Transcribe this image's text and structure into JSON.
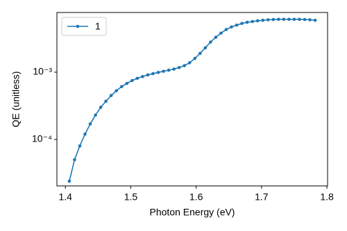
{
  "chart_data": {
    "type": "line",
    "x_label": "Photon Energy (eV)",
    "y_label": "QE (unitless)",
    "x": [
      1.406,
      1.414,
      1.422,
      1.43,
      1.438,
      1.446,
      1.454,
      1.462,
      1.47,
      1.478,
      1.486,
      1.494,
      1.502,
      1.51,
      1.518,
      1.526,
      1.534,
      1.542,
      1.55,
      1.558,
      1.566,
      1.574,
      1.582,
      1.59,
      1.598,
      1.606,
      1.614,
      1.622,
      1.63,
      1.638,
      1.646,
      1.654,
      1.662,
      1.67,
      1.678,
      1.686,
      1.694,
      1.702,
      1.71,
      1.718,
      1.726,
      1.734,
      1.742,
      1.75,
      1.758,
      1.766,
      1.774,
      1.782
    ],
    "series": [
      {
        "name": "1",
        "color": "#1f77b4",
        "values": [
          2.4e-05,
          5e-05,
          8e-05,
          0.00012,
          0.00017,
          0.00023,
          0.0003,
          0.00037,
          0.00045,
          0.00053,
          0.00061,
          0.00068,
          0.00075,
          0.00081,
          0.00086,
          0.00091,
          0.00095,
          0.00099,
          0.00103,
          0.00107,
          0.00111,
          0.00117,
          0.00125,
          0.00138,
          0.0016,
          0.0019,
          0.0023,
          0.0028,
          0.0033,
          0.0038,
          0.0043,
          0.0047,
          0.005,
          0.0053,
          0.0055,
          0.00565,
          0.0058,
          0.0059,
          0.006,
          0.00605,
          0.0061,
          0.0061,
          0.0061,
          0.0061,
          0.0061,
          0.00605,
          0.006,
          0.0059
        ]
      }
    ],
    "xlim": [
      1.387,
      1.801
    ],
    "xticks": [
      1.4,
      1.5,
      1.6,
      1.7,
      1.8
    ],
    "ylim": [
      2.04e-05,
      0.0077
    ],
    "yscale": "log",
    "yticks": [
      {
        "value": 0.0001,
        "label": "10⁻⁴"
      },
      {
        "value": 0.001,
        "label": "10⁻³"
      }
    ],
    "legend": "upper left"
  }
}
